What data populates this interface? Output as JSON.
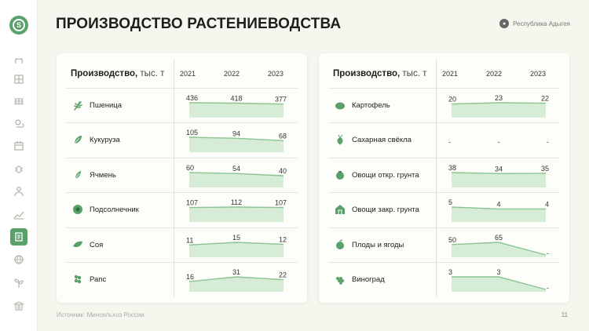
{
  "title": "ПРОИЗВОДСТВО РАСТЕНИЕВОДСТВА",
  "region": "Республика Адыгея",
  "logo_letter": "S",
  "footer": "Источник: Минсельхоз России",
  "page_number": "11",
  "colors": {
    "accent": "#5aa06a",
    "line": "#8cc490",
    "fill": "#d7ecd6"
  },
  "sidebar": {
    "items": [
      {
        "icon": "cow-icon",
        "active": false
      },
      {
        "icon": "grid-icon",
        "active": false
      },
      {
        "icon": "field-icon",
        "active": false
      },
      {
        "icon": "weather-icon",
        "active": false
      },
      {
        "icon": "calendar-icon",
        "active": false
      },
      {
        "icon": "bug-icon",
        "active": false
      },
      {
        "icon": "worker-icon",
        "active": false
      },
      {
        "icon": "growth-chart-icon",
        "active": false
      },
      {
        "icon": "document-icon",
        "active": true
      },
      {
        "icon": "globe-icon",
        "active": false
      },
      {
        "icon": "seedling-icon",
        "active": false
      },
      {
        "icon": "bank-icon",
        "active": false
      }
    ]
  },
  "panels": [
    {
      "title": "Производство,",
      "unit": "тыс. т",
      "years": [
        "2021",
        "2022",
        "2023"
      ],
      "rows": [
        {
          "label": "Пшеница",
          "icon": "wheat-icon",
          "values": [
            436,
            418,
            377
          ],
          "display": [
            "436",
            "418",
            "377"
          ]
        },
        {
          "label": "Кукуруза",
          "icon": "corn-icon",
          "values": [
            105,
            94,
            68
          ],
          "display": [
            "105",
            "94",
            "68"
          ]
        },
        {
          "label": "Ячмень",
          "icon": "barley-icon",
          "values": [
            60,
            54,
            40
          ],
          "display": [
            "60",
            "54",
            "40"
          ]
        },
        {
          "label": "Подсолнечник",
          "icon": "sunflower-icon",
          "values": [
            107,
            112,
            107
          ],
          "display": [
            "107",
            "112",
            "107"
          ]
        },
        {
          "label": "Соя",
          "icon": "soy-icon",
          "values": [
            11,
            15,
            12
          ],
          "display": [
            "11",
            "15",
            "12"
          ]
        },
        {
          "label": "Рапс",
          "icon": "rapeseed-icon",
          "values": [
            16,
            31,
            22
          ],
          "display": [
            "16",
            "31",
            "22"
          ]
        }
      ]
    },
    {
      "title": "Производство,",
      "unit": "тыс. т",
      "years": [
        "2021",
        "2022",
        "2023"
      ],
      "rows": [
        {
          "label": "Картофель",
          "icon": "potato-icon",
          "values": [
            20,
            23,
            22
          ],
          "display": [
            "20",
            "23",
            "22"
          ]
        },
        {
          "label": "Сахарная свёкла",
          "icon": "sugar-beet-icon",
          "values": [
            null,
            null,
            null
          ],
          "display": [
            "-",
            "-",
            "-"
          ]
        },
        {
          "label": "Овощи откр. грунта",
          "icon": "tomato-icon",
          "values": [
            38,
            34,
            35
          ],
          "display": [
            "38",
            "34",
            "35"
          ]
        },
        {
          "label": "Овощи закр. грунта",
          "icon": "greenhouse-icon",
          "values": [
            5,
            4,
            4
          ],
          "display": [
            "5",
            "4",
            "4"
          ]
        },
        {
          "label": "Плоды и ягоды",
          "icon": "fruit-icon",
          "values": [
            50,
            65,
            null
          ],
          "display": [
            "50",
            "65",
            "-"
          ]
        },
        {
          "label": "Виноград",
          "icon": "grape-icon",
          "values": [
            3,
            3,
            null
          ],
          "display": [
            "3",
            "3",
            "-"
          ]
        }
      ]
    }
  ]
}
